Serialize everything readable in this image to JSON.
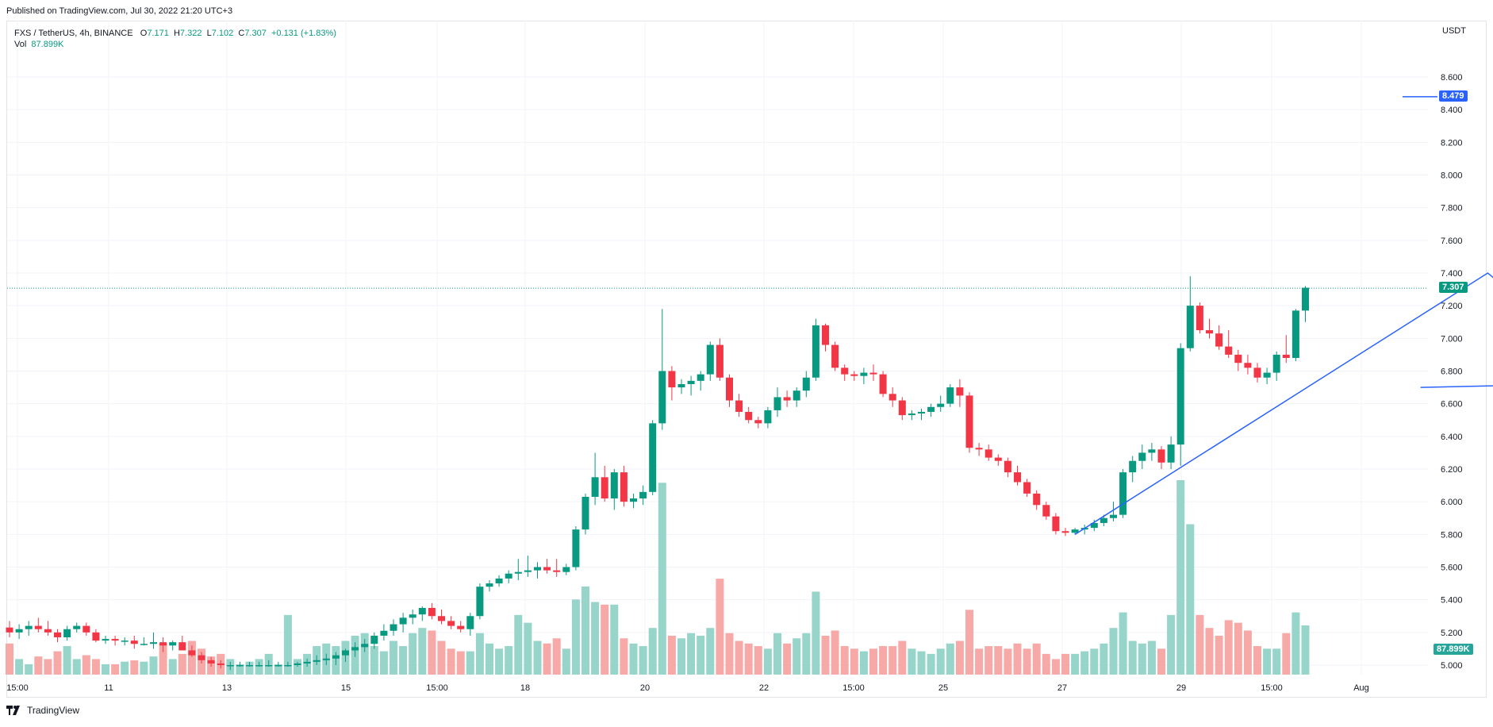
{
  "header": {
    "published": "Published on TradingView.com, Jul 30, 2022 21:20 UTC+3"
  },
  "legend": {
    "symbol": "FXS / TetherUS, 4h, BINANCE",
    "o_label": "O",
    "o_val": "7.171",
    "h_label": "H",
    "h_val": "7.322",
    "l_label": "L",
    "l_val": "7.102",
    "c_label": "C",
    "c_val": "7.307",
    "change": "+0.131 (+1.83%)",
    "vol_label": "Vol",
    "vol_val": "87.899K"
  },
  "currency": "USDT",
  "footer": {
    "brand": "TradingView"
  },
  "colors": {
    "up": "#089981",
    "down": "#f23645",
    "upVol": "#97d4ca",
    "downVol": "#f7a9a7",
    "drawing": "#2962ff",
    "grid": "#f0f3fa"
  },
  "price_tags": {
    "target": "8.479",
    "last": "7.307",
    "volume": "87.899K"
  },
  "chart_data": {
    "type": "candlestick",
    "interval": "4h",
    "ylim": [
      4.94,
      8.76
    ],
    "y_ticks": [
      "5.000",
      "5.200",
      "5.400",
      "5.600",
      "5.800",
      "6.000",
      "6.200",
      "6.400",
      "6.600",
      "6.800",
      "7.000",
      "7.200",
      "7.400",
      "7.600",
      "7.800",
      "8.000",
      "8.200",
      "8.400",
      "8.600"
    ],
    "x_ticks": [
      "15:00",
      "11",
      "13",
      "15",
      "15:00",
      "18",
      "20",
      "22",
      "15:00",
      "25",
      "27",
      "29",
      "15:00",
      "Aug"
    ],
    "candles": [
      [
        5.23,
        5.27,
        5.17,
        5.2,
        120
      ],
      [
        5.2,
        5.25,
        5.16,
        5.22,
        60
      ],
      [
        5.22,
        5.27,
        5.18,
        5.24,
        40
      ],
      [
        5.24,
        5.29,
        5.2,
        5.22,
        70
      ],
      [
        5.22,
        5.27,
        5.18,
        5.2,
        60
      ],
      [
        5.2,
        5.22,
        5.14,
        5.17,
        90
      ],
      [
        5.17,
        5.24,
        5.15,
        5.22,
        110
      ],
      [
        5.22,
        5.26,
        5.2,
        5.24,
        60
      ],
      [
        5.24,
        5.26,
        5.18,
        5.2,
        75
      ],
      [
        5.2,
        5.22,
        5.14,
        5.15,
        60
      ],
      [
        5.15,
        5.18,
        5.13,
        5.16,
        40
      ],
      [
        5.16,
        5.18,
        5.12,
        5.15,
        40
      ],
      [
        5.15,
        5.17,
        5.12,
        5.15,
        50
      ],
      [
        5.15,
        5.18,
        5.1,
        5.13,
        55
      ],
      [
        5.13,
        5.17,
        5.12,
        5.13,
        50
      ],
      [
        5.13,
        5.2,
        5.1,
        5.14,
        70
      ],
      [
        5.14,
        5.17,
        5.08,
        5.12,
        120
      ],
      [
        5.12,
        5.15,
        5.09,
        5.14,
        60
      ],
      [
        5.14,
        5.18,
        5.11,
        5.09,
        80
      ],
      [
        5.09,
        5.12,
        5.05,
        5.06,
        130
      ],
      [
        5.06,
        5.08,
        5.01,
        5.03,
        100
      ],
      [
        5.03,
        5.05,
        4.99,
        5.01,
        70
      ],
      [
        5.01,
        5.03,
        4.98,
        5.0,
        80
      ],
      [
        5.0,
        5.02,
        4.97,
        5.0,
        60
      ],
      [
        5.0,
        5.02,
        4.99,
        5.0,
        40
      ],
      [
        5.0,
        5.02,
        4.99,
        5.0,
        50
      ],
      [
        5.0,
        5.02,
        4.99,
        5.0,
        60
      ],
      [
        5.0,
        5.03,
        4.99,
        5.0,
        80
      ],
      [
        5.0,
        5.02,
        4.99,
        5.0,
        40
      ],
      [
        5.0,
        5.02,
        4.99,
        5.0,
        230
      ],
      [
        5.0,
        5.02,
        4.99,
        5.01,
        60
      ],
      [
        5.01,
        5.04,
        4.99,
        5.02,
        80
      ],
      [
        5.02,
        5.06,
        5.0,
        5.03,
        110
      ],
      [
        5.03,
        5.07,
        5.0,
        5.04,
        120
      ],
      [
        5.04,
        5.08,
        5.0,
        5.06,
        110
      ],
      [
        5.06,
        5.1,
        5.02,
        5.09,
        130
      ],
      [
        5.09,
        5.14,
        5.05,
        5.11,
        150
      ],
      [
        5.11,
        5.16,
        5.08,
        5.13,
        160
      ],
      [
        5.13,
        5.2,
        5.1,
        5.18,
        110
      ],
      [
        5.18,
        5.25,
        5.15,
        5.21,
        90
      ],
      [
        5.21,
        5.28,
        5.18,
        5.25,
        130
      ],
      [
        5.25,
        5.32,
        5.2,
        5.29,
        110
      ],
      [
        5.29,
        5.34,
        5.25,
        5.31,
        160
      ],
      [
        5.31,
        5.36,
        5.27,
        5.35,
        180
      ],
      [
        5.35,
        5.38,
        5.28,
        5.3,
        170
      ],
      [
        5.3,
        5.34,
        5.25,
        5.27,
        130
      ],
      [
        5.27,
        5.3,
        5.22,
        5.24,
        100
      ],
      [
        5.24,
        5.27,
        5.2,
        5.22,
        90
      ],
      [
        5.22,
        5.32,
        5.18,
        5.3,
        90
      ],
      [
        5.3,
        5.5,
        5.28,
        5.48,
        160
      ],
      [
        5.48,
        5.52,
        5.45,
        5.5,
        120
      ],
      [
        5.5,
        5.55,
        5.48,
        5.53,
        100
      ],
      [
        5.53,
        5.58,
        5.5,
        5.56,
        110
      ],
      [
        5.56,
        5.65,
        5.52,
        5.57,
        230
      ],
      [
        5.57,
        5.67,
        5.54,
        5.58,
        200
      ],
      [
        5.58,
        5.63,
        5.53,
        5.6,
        130
      ],
      [
        5.6,
        5.65,
        5.56,
        5.58,
        120
      ],
      [
        5.58,
        5.65,
        5.54,
        5.57,
        140
      ],
      [
        5.57,
        5.62,
        5.55,
        5.6,
        100
      ],
      [
        5.6,
        5.85,
        5.58,
        5.83,
        290
      ],
      [
        5.83,
        6.05,
        5.8,
        6.03,
        340
      ],
      [
        6.03,
        6.3,
        5.98,
        6.15,
        280
      ],
      [
        6.15,
        6.22,
        6.0,
        6.02,
        270
      ],
      [
        6.02,
        6.2,
        5.95,
        6.18,
        270
      ],
      [
        6.18,
        6.22,
        5.97,
        6.0,
        140
      ],
      [
        6.0,
        6.05,
        5.96,
        6.02,
        120
      ],
      [
        6.02,
        6.1,
        5.98,
        6.06,
        110
      ],
      [
        6.06,
        6.5,
        6.04,
        6.48,
        180
      ],
      [
        6.48,
        7.18,
        6.44,
        6.8,
        740
      ],
      [
        6.8,
        6.83,
        6.62,
        6.7,
        150
      ],
      [
        6.7,
        6.75,
        6.66,
        6.72,
        140
      ],
      [
        6.72,
        6.77,
        6.65,
        6.74,
        160
      ],
      [
        6.74,
        6.8,
        6.68,
        6.78,
        150
      ],
      [
        6.78,
        6.98,
        6.74,
        6.96,
        180
      ],
      [
        6.96,
        7.0,
        6.74,
        6.76,
        370
      ],
      [
        6.76,
        6.78,
        6.58,
        6.62,
        160
      ],
      [
        6.62,
        6.66,
        6.52,
        6.55,
        130
      ],
      [
        6.55,
        6.58,
        6.48,
        6.5,
        120
      ],
      [
        6.5,
        6.52,
        6.45,
        6.48,
        110
      ],
      [
        6.48,
        6.58,
        6.45,
        6.56,
        100
      ],
      [
        6.56,
        6.7,
        6.52,
        6.64,
        160
      ],
      [
        6.64,
        6.68,
        6.58,
        6.62,
        120
      ],
      [
        6.62,
        6.7,
        6.58,
        6.68,
        140
      ],
      [
        6.68,
        6.8,
        6.64,
        6.76,
        160
      ],
      [
        6.76,
        7.12,
        6.74,
        7.08,
        320
      ],
      [
        7.08,
        7.09,
        6.92,
        6.96,
        150
      ],
      [
        6.96,
        6.98,
        6.8,
        6.82,
        170
      ],
      [
        6.82,
        6.84,
        6.74,
        6.78,
        110
      ],
      [
        6.78,
        6.8,
        6.74,
        6.77,
        100
      ],
      [
        6.77,
        6.82,
        6.72,
        6.79,
        90
      ],
      [
        6.79,
        6.84,
        6.74,
        6.78,
        100
      ],
      [
        6.78,
        6.8,
        6.64,
        6.66,
        110
      ],
      [
        6.66,
        6.7,
        6.58,
        6.62,
        110
      ],
      [
        6.62,
        6.64,
        6.5,
        6.53,
        130
      ],
      [
        6.53,
        6.56,
        6.5,
        6.54,
        100
      ],
      [
        6.54,
        6.57,
        6.5,
        6.55,
        90
      ],
      [
        6.55,
        6.6,
        6.52,
        6.58,
        80
      ],
      [
        6.58,
        6.65,
        6.55,
        6.6,
        100
      ],
      [
        6.6,
        6.72,
        6.58,
        6.7,
        120
      ],
      [
        6.7,
        6.75,
        6.58,
        6.65,
        130
      ],
      [
        6.65,
        6.67,
        6.3,
        6.33,
        250
      ],
      [
        6.33,
        6.36,
        6.28,
        6.32,
        100
      ],
      [
        6.32,
        6.35,
        6.25,
        6.27,
        110
      ],
      [
        6.27,
        6.29,
        6.22,
        6.25,
        110
      ],
      [
        6.25,
        6.27,
        6.15,
        6.18,
        100
      ],
      [
        6.18,
        6.22,
        6.1,
        6.12,
        120
      ],
      [
        6.12,
        6.14,
        6.03,
        6.05,
        100
      ],
      [
        6.05,
        6.07,
        5.95,
        5.98,
        120
      ],
      [
        5.98,
        6.0,
        5.89,
        5.91,
        80
      ],
      [
        5.91,
        5.93,
        5.8,
        5.82,
        60
      ],
      [
        5.82,
        5.84,
        5.79,
        5.81,
        80
      ],
      [
        5.81,
        5.84,
        5.8,
        5.83,
        80
      ],
      [
        5.83,
        5.86,
        5.8,
        5.84,
        90
      ],
      [
        5.84,
        5.89,
        5.82,
        5.87,
        100
      ],
      [
        5.87,
        5.92,
        5.85,
        5.9,
        120
      ],
      [
        5.9,
        6.0,
        5.88,
        5.92,
        180
      ],
      [
        5.92,
        6.2,
        5.9,
        6.18,
        240
      ],
      [
        6.18,
        6.28,
        6.12,
        6.25,
        130
      ],
      [
        6.25,
        6.35,
        6.2,
        6.3,
        120
      ],
      [
        6.3,
        6.36,
        6.25,
        6.32,
        130
      ],
      [
        6.32,
        6.34,
        6.2,
        6.24,
        100
      ],
      [
        6.24,
        6.4,
        6.2,
        6.35,
        230
      ],
      [
        6.35,
        6.97,
        6.22,
        6.94,
        750
      ],
      [
        6.94,
        7.38,
        6.92,
        7.2,
        580
      ],
      [
        7.2,
        7.22,
        7.03,
        7.05,
        230
      ],
      [
        7.05,
        7.12,
        7.0,
        7.03,
        180
      ],
      [
        7.03,
        7.08,
        6.93,
        6.95,
        150
      ],
      [
        6.95,
        7.05,
        6.88,
        6.9,
        210
      ],
      [
        6.9,
        6.93,
        6.8,
        6.85,
        200
      ],
      [
        6.85,
        6.9,
        6.78,
        6.82,
        170
      ],
      [
        6.82,
        6.85,
        6.73,
        6.76,
        110
      ],
      [
        6.76,
        6.82,
        6.72,
        6.79,
        100
      ],
      [
        6.79,
        6.92,
        6.74,
        6.9,
        100
      ],
      [
        6.9,
        7.02,
        6.85,
        6.88,
        160
      ],
      [
        6.88,
        7.18,
        6.86,
        7.17,
        240
      ],
      [
        7.17,
        7.32,
        7.1,
        7.31,
        190
      ]
    ],
    "drawing": {
      "zigzag": [
        [
          111,
          5.8
        ],
        [
          154,
          7.4
        ],
        [
          165,
          6.87
        ],
        [
          180,
          8.48
        ]
      ],
      "neckline": [
        [
          147,
          6.7
        ],
        [
          163,
          6.72
        ]
      ]
    }
  }
}
